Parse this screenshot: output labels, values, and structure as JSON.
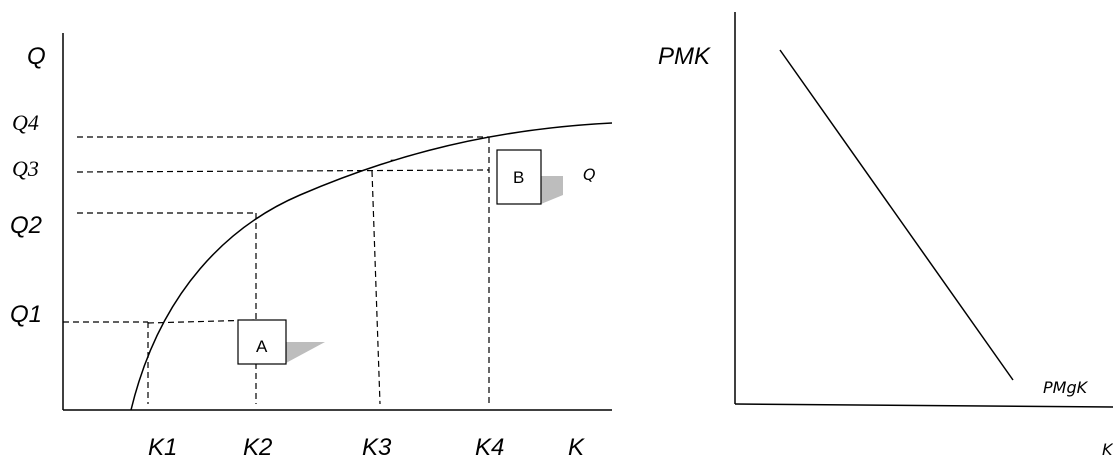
{
  "left_diagram": {
    "y_axis_label": "Q",
    "x_axis_label": "K",
    "curve_label": "Q",
    "y_ticks": [
      "Q1",
      "Q2",
      "Q3",
      "Q4"
    ],
    "x_ticks": [
      "K1",
      "K2",
      "K3",
      "K4"
    ],
    "box_a": "A",
    "box_b": "B",
    "stray_mark": "-"
  },
  "right_diagram": {
    "y_axis_label": "PMK",
    "line_label": "PMgK",
    "x_axis_label": "K"
  }
}
